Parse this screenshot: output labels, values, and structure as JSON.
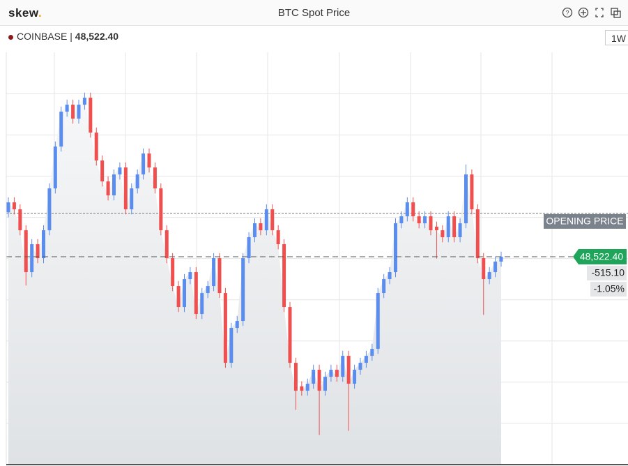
{
  "header": {
    "brand": "skew",
    "brand_dot": ".",
    "title": "BTC Spot Price",
    "exchange": "COINBASE",
    "separator": "|",
    "range": "1W"
  },
  "chart_data": {
    "type": "candlestick",
    "open": [
      49050,
      49169,
      49086,
      48837,
      48339,
      48671,
      48505,
      48837,
      49335,
      49833,
      50248,
      50331,
      50165,
      50331,
      50414,
      49999,
      49667,
      49418,
      49252,
      49501,
      49584,
      49086,
      49335,
      49501,
      49750,
      49584,
      49335,
      48837,
      48505,
      48173,
      47924,
      48256,
      48339,
      47841,
      48090,
      48173,
      48505,
      48090,
      47260,
      47675,
      47758,
      48505,
      48754,
      48920,
      48837,
      49086,
      48837,
      48671,
      47924,
      47260,
      46980,
      46928,
      47011,
      47177,
      46928,
      47094,
      47177,
      47094,
      47343,
      47011,
      47177,
      47260,
      47343,
      47426,
      48090,
      48256,
      48339,
      48920,
      49003,
      49169,
      49003,
      48920,
      49003,
      48880,
      48837,
      48754,
      49003,
      48754,
      48920,
      49501,
      49086,
      48505,
      48256,
      48339,
      48464
    ],
    "high": [
      49229,
      49229,
      49146,
      48897,
      48731,
      48731,
      48897,
      49395,
      49893,
      50308,
      50391,
      50391,
      50391,
      50474,
      50474,
      50059,
      49727,
      49478,
      49561,
      49644,
      49644,
      49395,
      49561,
      49810,
      49810,
      49644,
      49395,
      48897,
      48565,
      48233,
      48316,
      48399,
      48399,
      48150,
      48233,
      48565,
      48565,
      48150,
      47735,
      47818,
      48565,
      48814,
      48980,
      48980,
      49146,
      49146,
      48897,
      48731,
      47984,
      47320,
      47040,
      47071,
      47237,
      47237,
      47154,
      47237,
      47237,
      47403,
      47403,
      47237,
      47320,
      47403,
      47486,
      48150,
      48316,
      48399,
      48980,
      49063,
      49229,
      49229,
      49063,
      49063,
      49063,
      48940,
      48897,
      49063,
      49063,
      48980,
      49620,
      49561,
      49146,
      48565,
      48399,
      48524,
      48582
    ],
    "low": [
      48990,
      49026,
      48777,
      48180,
      48279,
      48445,
      48445,
      48777,
      49275,
      49773,
      50188,
      50105,
      50105,
      50271,
      49939,
      49607,
      49358,
      49192,
      49192,
      49441,
      49026,
      49026,
      49275,
      49441,
      49524,
      49275,
      48777,
      48445,
      48113,
      47864,
      47864,
      48196,
      47781,
      47781,
      48030,
      48113,
      48030,
      47200,
      47200,
      47615,
      47698,
      48445,
      48694,
      48777,
      48777,
      48777,
      48611,
      47864,
      47200,
      46700,
      46868,
      46868,
      46951,
      46400,
      46868,
      47034,
      47034,
      47034,
      46450,
      46951,
      47117,
      47200,
      47283,
      47366,
      48030,
      48196,
      48279,
      48860,
      48943,
      48943,
      48860,
      48860,
      48777,
      48500,
      48694,
      48694,
      48694,
      48694,
      48860,
      49026,
      48445,
      47830,
      48196,
      48279,
      48404
    ],
    "close": [
      49169,
      49086,
      48837,
      48339,
      48671,
      48505,
      48837,
      49335,
      49833,
      50248,
      50331,
      50165,
      50331,
      50414,
      49999,
      49667,
      49418,
      49252,
      49501,
      49584,
      49086,
      49335,
      49501,
      49750,
      49584,
      49335,
      48837,
      48505,
      48173,
      47924,
      48256,
      48339,
      47841,
      48090,
      48173,
      48505,
      48090,
      47260,
      47675,
      47758,
      48505,
      48754,
      48920,
      48837,
      49086,
      48837,
      48671,
      47924,
      47260,
      46928,
      46928,
      47011,
      47177,
      46928,
      47094,
      47177,
      47094,
      47343,
      47011,
      47177,
      47260,
      47343,
      47426,
      48090,
      48256,
      48339,
      48920,
      49003,
      49169,
      49003,
      48920,
      49003,
      48837,
      48837,
      48754,
      49003,
      48754,
      48920,
      49501,
      49086,
      48505,
      48256,
      48339,
      48464,
      48522.4
    ],
    "up_color": "#5b8def",
    "down_color": "#ef4f4f",
    "ylim": [
      46057,
      50954
    ],
    "yticks": [
      46540,
      47030,
      47520,
      48010,
      48500,
      48990,
      49480,
      49970,
      50460
    ],
    "grid": true,
    "opening_price": {
      "value": 49037.5,
      "label": "OPENING PRICE"
    },
    "last_price": {
      "value": 48522.4,
      "label": "48,522.40"
    },
    "change": {
      "value": -515.1,
      "label": "-515.10"
    },
    "change_pct": {
      "value": -1.05,
      "label": "-1.05%"
    }
  }
}
